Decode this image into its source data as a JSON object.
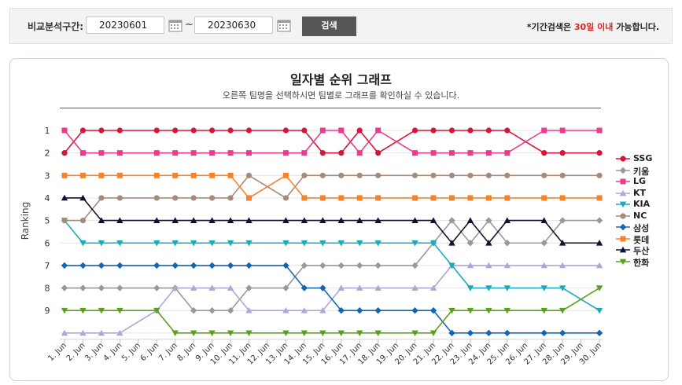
{
  "search": {
    "label": "비교분석구간:",
    "start_date": "20230601",
    "end_date": "20230630",
    "separator": "~",
    "button_label": "검색",
    "notice_prefix": "*기간검색은 ",
    "notice_highlight": "30일 이내",
    "notice_suffix": " 가능합니다."
  },
  "chart_data": {
    "type": "line",
    "title": "일자별 순위 그래프",
    "subtitle": "오른쪽 팀명을 선택하시면 팀별로 그래프를 확인하실 수 있습니다.",
    "ylabel": "Ranking",
    "xlabel": "",
    "ylim": [
      1,
      10
    ],
    "y_inverted": true,
    "yticks": [
      "1",
      "2",
      "3",
      "4",
      "5",
      "6",
      "7",
      "8",
      "9"
    ],
    "categories": [
      "1. Jun",
      "2. Jun",
      "3. Jun",
      "4. Jun",
      "5. Jun",
      "6. Jun",
      "7. Jun",
      "8. Jun",
      "9. Jun",
      "10. Jun",
      "11. Jun",
      "12. Jun",
      "13. Jun",
      "14. Jun",
      "15. Jun",
      "16. Jun",
      "17. Jun",
      "18. Jun",
      "19. Jun",
      "20. Jun",
      "21. Jun",
      "22. Jun",
      "23. Jun",
      "24. Jun",
      "25. Jun",
      "26. Jun",
      "27. Jun",
      "28. Jun",
      "29. Jun",
      "30. Jun"
    ],
    "series": [
      {
        "name": "SSG",
        "color": "#d6143c",
        "marker": "circle",
        "values": [
          2,
          1,
          1,
          1,
          null,
          1,
          1,
          1,
          1,
          1,
          1,
          null,
          1,
          1,
          2,
          2,
          1,
          2,
          null,
          1,
          1,
          1,
          1,
          1,
          1,
          null,
          2,
          2,
          null,
          2
        ]
      },
      {
        "name": "키움",
        "color": "#999999",
        "marker": "diamond",
        "values": [
          8,
          8,
          8,
          8,
          null,
          8,
          8,
          9,
          9,
          9,
          8,
          null,
          8,
          7,
          7,
          7,
          7,
          7,
          null,
          7,
          6,
          5,
          6,
          5,
          6,
          null,
          6,
          5,
          null,
          5
        ]
      },
      {
        "name": "LG",
        "color": "#ee3a8c",
        "marker": "square",
        "values": [
          1,
          2,
          2,
          2,
          null,
          2,
          2,
          2,
          2,
          2,
          2,
          null,
          2,
          2,
          1,
          1,
          2,
          1,
          null,
          2,
          2,
          2,
          2,
          2,
          2,
          null,
          1,
          1,
          null,
          1
        ]
      },
      {
        "name": "KT",
        "color": "#b3a3d6",
        "marker": "triangle-up",
        "values": [
          10,
          10,
          10,
          10,
          null,
          9,
          8,
          8,
          8,
          8,
          9,
          null,
          9,
          9,
          9,
          8,
          8,
          8,
          null,
          8,
          8,
          7,
          7,
          7,
          7,
          null,
          7,
          7,
          null,
          7
        ]
      },
      {
        "name": "KIA",
        "color": "#1aabbb",
        "marker": "triangle-down",
        "values": [
          5,
          6,
          6,
          6,
          null,
          6,
          6,
          6,
          6,
          6,
          6,
          null,
          6,
          6,
          6,
          6,
          6,
          6,
          null,
          6,
          6,
          7,
          8,
          8,
          8,
          null,
          8,
          8,
          null,
          9
        ]
      },
      {
        "name": "NC",
        "color": "#a68a7a",
        "marker": "circle",
        "values": [
          5,
          5,
          4,
          4,
          null,
          4,
          4,
          4,
          4,
          4,
          3,
          null,
          4,
          3,
          3,
          3,
          3,
          3,
          null,
          3,
          3,
          3,
          3,
          3,
          3,
          null,
          3,
          3,
          null,
          3
        ]
      },
      {
        "name": "삼성",
        "color": "#1565b5",
        "marker": "diamond",
        "values": [
          7,
          7,
          7,
          7,
          null,
          7,
          7,
          7,
          7,
          7,
          7,
          null,
          7,
          8,
          8,
          9,
          9,
          9,
          null,
          9,
          9,
          10,
          10,
          10,
          10,
          null,
          10,
          10,
          null,
          10
        ]
      },
      {
        "name": "롯데",
        "color": "#f4832a",
        "marker": "square",
        "values": [
          3,
          3,
          3,
          3,
          null,
          3,
          3,
          3,
          3,
          3,
          4,
          null,
          3,
          4,
          4,
          4,
          4,
          4,
          null,
          4,
          4,
          4,
          4,
          4,
          4,
          null,
          4,
          4,
          null,
          4
        ]
      },
      {
        "name": "두산",
        "color": "#111133",
        "marker": "triangle-up",
        "values": [
          4,
          4,
          5,
          5,
          null,
          5,
          5,
          5,
          5,
          5,
          5,
          null,
          5,
          5,
          5,
          5,
          5,
          5,
          null,
          5,
          5,
          6,
          5,
          6,
          5,
          null,
          5,
          6,
          null,
          6
        ]
      },
      {
        "name": "한화",
        "color": "#5ba01a",
        "marker": "triangle-down",
        "values": [
          9,
          9,
          9,
          9,
          null,
          9,
          10,
          10,
          10,
          10,
          10,
          null,
          10,
          10,
          10,
          10,
          10,
          10,
          null,
          10,
          10,
          9,
          9,
          9,
          9,
          null,
          9,
          9,
          null,
          8
        ]
      }
    ]
  }
}
